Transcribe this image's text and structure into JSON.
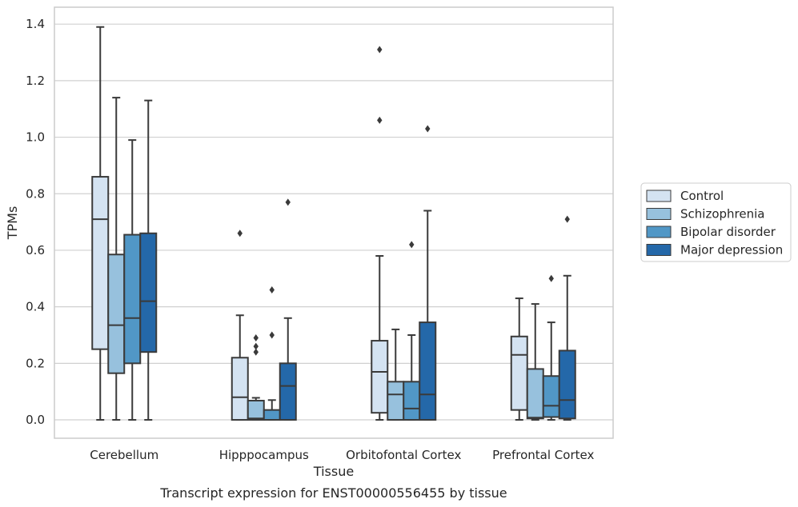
{
  "caption": "Transcript expression for ENST00000556455 by tissue",
  "chart_data": {
    "type": "box",
    "title": "",
    "xlabel": "Tissue",
    "ylabel": "TPMs",
    "ylim": [
      -0.065,
      1.46
    ],
    "yticks": [
      0.0,
      0.2,
      0.4,
      0.6,
      0.8,
      1.0,
      1.2,
      1.4
    ],
    "ytick_labels": [
      "0.0",
      "0.2",
      "0.4",
      "0.6",
      "0.8",
      "1.0",
      "1.2",
      "1.4"
    ],
    "grid": "horizontal",
    "legend_position": "right",
    "categories": [
      "Cerebellum",
      "Hipppocampus",
      "Orbitofontal Cortex",
      "Prefrontal Cortex"
    ],
    "series": [
      {
        "name": "Control",
        "color": "#d4e3f2",
        "boxes": [
          {
            "min": 0.0,
            "q1": 0.25,
            "median": 0.71,
            "q3": 0.86,
            "max": 1.39,
            "outliers": []
          },
          {
            "min": 0.0,
            "q1": 0.0,
            "median": 0.08,
            "q3": 0.22,
            "max": 0.37,
            "outliers": [
              0.66
            ]
          },
          {
            "min": 0.0,
            "q1": 0.025,
            "median": 0.17,
            "q3": 0.28,
            "max": 0.58,
            "outliers": [
              1.06,
              1.31
            ]
          },
          {
            "min": 0.0,
            "q1": 0.035,
            "median": 0.23,
            "q3": 0.295,
            "max": 0.43,
            "outliers": []
          }
        ]
      },
      {
        "name": "Schizophrenia",
        "color": "#97c1dd",
        "boxes": [
          {
            "min": 0.0,
            "q1": 0.165,
            "median": 0.335,
            "q3": 0.585,
            "max": 1.14,
            "outliers": []
          },
          {
            "min": 0.0,
            "q1": 0.0,
            "median": 0.005,
            "q3": 0.068,
            "max": 0.078,
            "outliers": [
              0.24,
              0.26,
              0.29
            ]
          },
          {
            "min": 0.0,
            "q1": 0.0,
            "median": 0.09,
            "q3": 0.135,
            "max": 0.32,
            "outliers": []
          },
          {
            "min": 0.0,
            "q1": 0.005,
            "median": 0.008,
            "q3": 0.18,
            "max": 0.41,
            "outliers": []
          }
        ]
      },
      {
        "name": "Bipolar disorder",
        "color": "#5197c6",
        "boxes": [
          {
            "min": 0.0,
            "q1": 0.2,
            "median": 0.36,
            "q3": 0.655,
            "max": 0.99,
            "outliers": []
          },
          {
            "min": 0.0,
            "q1": 0.0,
            "median": 0.0,
            "q3": 0.035,
            "max": 0.07,
            "outliers": [
              0.3,
              0.46
            ]
          },
          {
            "min": 0.0,
            "q1": 0.0,
            "median": 0.04,
            "q3": 0.135,
            "max": 0.3,
            "outliers": [
              0.62
            ]
          },
          {
            "min": 0.0,
            "q1": 0.01,
            "median": 0.05,
            "q3": 0.155,
            "max": 0.345,
            "outliers": [
              0.5
            ]
          }
        ]
      },
      {
        "name": "Major depression",
        "color": "#2468a9",
        "boxes": [
          {
            "min": 0.0,
            "q1": 0.24,
            "median": 0.42,
            "q3": 0.66,
            "max": 1.13,
            "outliers": []
          },
          {
            "min": 0.0,
            "q1": 0.0,
            "median": 0.12,
            "q3": 0.2,
            "max": 0.36,
            "outliers": [
              0.77
            ]
          },
          {
            "min": 0.0,
            "q1": 0.0,
            "median": 0.09,
            "q3": 0.345,
            "max": 0.74,
            "outliers": [
              1.03
            ]
          },
          {
            "min": 0.0,
            "q1": 0.005,
            "median": 0.07,
            "q3": 0.245,
            "max": 0.51,
            "outliers": [
              0.71
            ]
          }
        ]
      }
    ]
  }
}
